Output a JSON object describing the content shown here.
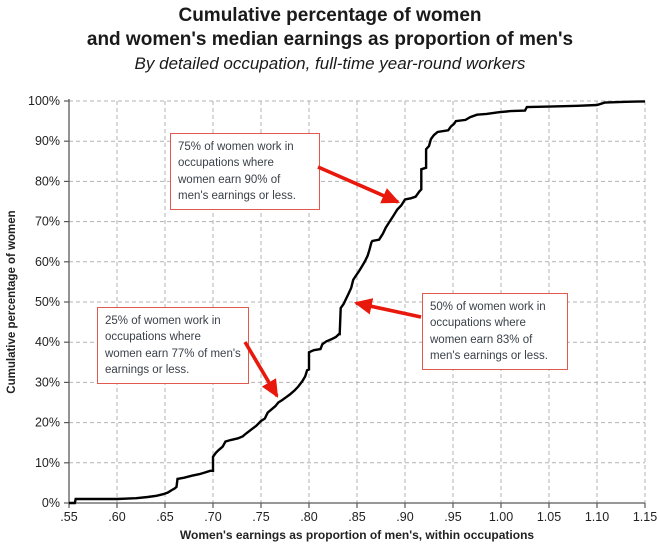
{
  "header": {
    "title_line1": "Cumulative percentage of women",
    "title_line2": "and women's median earnings as proportion of men's",
    "subtitle": "By detailed occupation, full-time year-round workers"
  },
  "chart_data": {
    "type": "line",
    "title": "Cumulative percentage of women and women's median earnings as proportion of men's",
    "subtitle": "By detailed occupation, full-time year-round workers",
    "xlabel": "Women's earnings as proportion of men's, within occupations",
    "ylabel": "Cumulative percentage of women",
    "xlim": [
      0.55,
      1.15
    ],
    "ylim": [
      0,
      100
    ],
    "grid": "dashed",
    "legend": "none",
    "x_ticks": [
      0.55,
      0.6,
      0.65,
      0.7,
      0.75,
      0.8,
      0.85,
      0.9,
      0.95,
      1.0,
      1.05,
      1.1,
      1.15
    ],
    "x_tick_labels": [
      ".55",
      ".60",
      ".65",
      ".70",
      ".75",
      ".80",
      ".85",
      ".90",
      ".95",
      "1.00",
      "1.05",
      "1.10",
      "1.15"
    ],
    "y_ticks": [
      0,
      10,
      20,
      30,
      40,
      50,
      60,
      70,
      80,
      90,
      100
    ],
    "y_tick_labels": [
      "0%",
      "10%",
      "20%",
      "30%",
      "40%",
      "50%",
      "60%",
      "70%",
      "80%",
      "90%",
      "100%"
    ],
    "points": [
      [
        0.55,
        0
      ],
      [
        0.556,
        0
      ],
      [
        0.557,
        1
      ],
      [
        0.6,
        1
      ],
      [
        0.62,
        1.2
      ],
      [
        0.632,
        1.5
      ],
      [
        0.641,
        1.8
      ],
      [
        0.648,
        2.2
      ],
      [
        0.653,
        2.6
      ],
      [
        0.657,
        3.2
      ],
      [
        0.66,
        3.6
      ],
      [
        0.662,
        4
      ],
      [
        0.663,
        6
      ],
      [
        0.67,
        6.3
      ],
      [
        0.678,
        6.8
      ],
      [
        0.686,
        7.2
      ],
      [
        0.692,
        7.6
      ],
      [
        0.697,
        8
      ],
      [
        0.7,
        8
      ],
      [
        0.7,
        11.5
      ],
      [
        0.703,
        12.5
      ],
      [
        0.706,
        13.2
      ],
      [
        0.71,
        14
      ],
      [
        0.713,
        15.3
      ],
      [
        0.719,
        15.7
      ],
      [
        0.726,
        16.1
      ],
      [
        0.731,
        16.6
      ],
      [
        0.734,
        17.2
      ],
      [
        0.74,
        18.3
      ],
      [
        0.745,
        19.2
      ],
      [
        0.75,
        20.4
      ],
      [
        0.754,
        21
      ],
      [
        0.757,
        22.5
      ],
      [
        0.761,
        23.3
      ],
      [
        0.765,
        24.1
      ],
      [
        0.768,
        25
      ],
      [
        0.772,
        25.6
      ],
      [
        0.776,
        26.3
      ],
      [
        0.78,
        27
      ],
      [
        0.785,
        28
      ],
      [
        0.789,
        29
      ],
      [
        0.793,
        30.3
      ],
      [
        0.796,
        31.5
      ],
      [
        0.798,
        33
      ],
      [
        0.8,
        33.2
      ],
      [
        0.8,
        37.5
      ],
      [
        0.805,
        38
      ],
      [
        0.812,
        38.3
      ],
      [
        0.814,
        39.5
      ],
      [
        0.818,
        40.2
      ],
      [
        0.823,
        40.7
      ],
      [
        0.828,
        41.3
      ],
      [
        0.831,
        42
      ],
      [
        0.832,
        42
      ],
      [
        0.833,
        48.5
      ],
      [
        0.836,
        49.5
      ],
      [
        0.838,
        50.5
      ],
      [
        0.841,
        52
      ],
      [
        0.844,
        53.5
      ],
      [
        0.846,
        55.5
      ],
      [
        0.849,
        56.6
      ],
      [
        0.852,
        57.6
      ],
      [
        0.855,
        58.8
      ],
      [
        0.858,
        60
      ],
      [
        0.861,
        61.5
      ],
      [
        0.863,
        63
      ],
      [
        0.865,
        64.8
      ],
      [
        0.866,
        65.2
      ],
      [
        0.873,
        65.5
      ],
      [
        0.877,
        67
      ],
      [
        0.88,
        68.5
      ],
      [
        0.884,
        70
      ],
      [
        0.888,
        71.5
      ],
      [
        0.892,
        73
      ],
      [
        0.896,
        74
      ],
      [
        0.9,
        75.5
      ],
      [
        0.906,
        75.8
      ],
      [
        0.911,
        76.2
      ],
      [
        0.915,
        77.5
      ],
      [
        0.917,
        78
      ],
      [
        0.917,
        83
      ],
      [
        0.922,
        83.4
      ],
      [
        0.922,
        88
      ],
      [
        0.925,
        88.8
      ],
      [
        0.927,
        90.5
      ],
      [
        0.93,
        91.5
      ],
      [
        0.934,
        92.3
      ],
      [
        0.945,
        92.7
      ],
      [
        0.948,
        93.7
      ],
      [
        0.951,
        94.3
      ],
      [
        0.953,
        95
      ],
      [
        0.963,
        95.3
      ],
      [
        0.968,
        96
      ],
      [
        0.975,
        96.6
      ],
      [
        0.985,
        96.8
      ],
      [
        0.997,
        97.2
      ],
      [
        1.01,
        97.5
      ],
      [
        1.025,
        97.6
      ],
      [
        1.027,
        98.5
      ],
      [
        1.05,
        98.6
      ],
      [
        1.08,
        98.8
      ],
      [
        1.1,
        99
      ],
      [
        1.108,
        99.6
      ],
      [
        1.13,
        99.8
      ],
      [
        1.15,
        99.9
      ]
    ],
    "annotations": [
      {
        "id": "p75",
        "cum_pct": 75,
        "ratio": 0.9,
        "text": "75% of women work in occupations where women earn 90% of men's earnings or less."
      },
      {
        "id": "p25",
        "cum_pct": 25,
        "ratio": 0.77,
        "text": "25% of women work in occupations where women earn 77% of men's earnings or less."
      },
      {
        "id": "p50",
        "cum_pct": 50,
        "ratio": 0.83,
        "text": "50% of women work in occupations where women earn 83% of men's earnings or less."
      }
    ],
    "colors": {
      "line": "#000000",
      "arrow": "#e8190c",
      "annotation_border": "#e0584e",
      "annotation_text": "#3a4149",
      "grid": "#b3b3b3",
      "axis": "#595959",
      "tick_text": "#222222",
      "title_text": "#1a1a1a"
    }
  }
}
